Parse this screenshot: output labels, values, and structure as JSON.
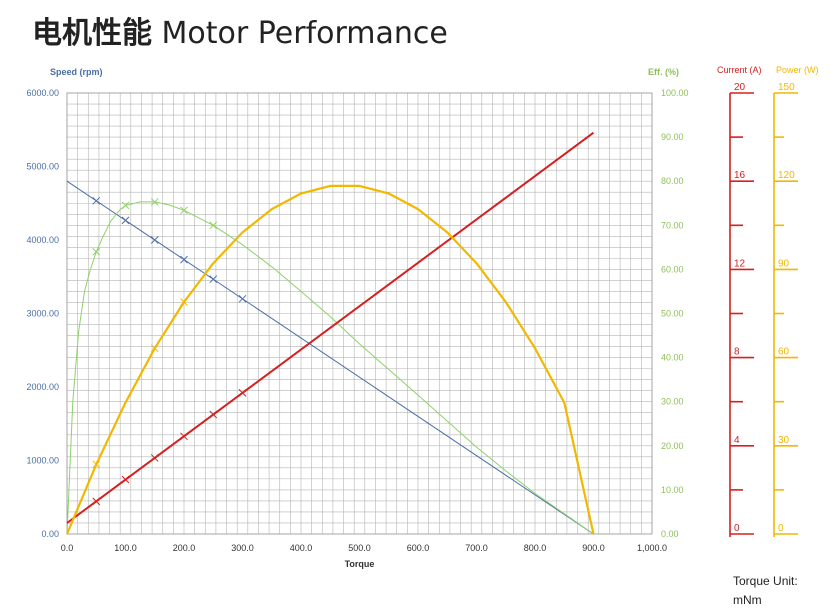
{
  "page": {
    "title_cn": "电机性能",
    "title_en": "Motor Performance",
    "torque_unit_label": "Torque Unit:",
    "torque_unit_value": "mNm"
  },
  "colors": {
    "speed": "#4a6fa5",
    "efficiency": "#8fd16a",
    "current": "#d42020",
    "power": "#f2b800",
    "grid": "#b4b4b4"
  },
  "chart_data": {
    "type": "line",
    "xlabel": "Torque",
    "xlim": [
      0,
      1000
    ],
    "xticks": [
      "0.0",
      "100.0",
      "200.0",
      "300.0",
      "400.0",
      "500.0",
      "600.0",
      "700.0",
      "800.0",
      "900.0",
      "1,000.0"
    ],
    "left_axis": {
      "label": "Speed (rpm)",
      "range": [
        0,
        6000
      ],
      "ticks": [
        "0.00",
        "1000.00",
        "2000.00",
        "3000.00",
        "4000.00",
        "5000.00",
        "6000.00"
      ]
    },
    "right_axis": {
      "label": "Eff. (%)",
      "range": [
        0,
        100
      ],
      "ticks": [
        "0.00",
        "10.00",
        "20.00",
        "30.00",
        "40.00",
        "50.00",
        "60.00",
        "70.00",
        "80.00",
        "90.00",
        "100.00"
      ]
    },
    "current_axis": {
      "label": "Current (A)",
      "range": [
        0,
        20
      ],
      "ticks": [
        "0",
        "4",
        "8",
        "12",
        "16",
        "20"
      ]
    },
    "power_axis": {
      "label": "Power (W)",
      "range": [
        0,
        150
      ],
      "ticks": [
        "0",
        "30",
        "60",
        "90",
        "120",
        "150"
      ]
    },
    "grid": true,
    "series": [
      {
        "key": "speed",
        "axis": "left",
        "x": [
          0,
          900
        ],
        "y": [
          4800,
          0
        ],
        "markers_x": [
          50,
          100,
          150,
          200,
          250,
          300
        ],
        "markers_y": [
          4533,
          4267,
          4000,
          3733,
          3467,
          3200
        ]
      },
      {
        "key": "efficiency",
        "axis": "right",
        "x": [
          0,
          5,
          10,
          20,
          30,
          40,
          50,
          60,
          75,
          90,
          100,
          125,
          150,
          175,
          200,
          250,
          300,
          350,
          400,
          450,
          500,
          550,
          600,
          650,
          700,
          750,
          800,
          850,
          900
        ],
        "y": [
          0,
          15,
          30,
          46,
          55,
          60,
          64,
          67,
          71,
          73.5,
          74.5,
          75.3,
          75.3,
          74.6,
          73.4,
          70,
          65.6,
          60.6,
          55,
          49.3,
          43.1,
          37.3,
          31.5,
          25.6,
          19.7,
          14.3,
          9.2,
          4.6,
          0
        ],
        "markers_x": [
          50,
          100,
          150,
          200,
          250
        ],
        "markers_y": [
          64,
          74.5,
          75.3,
          73.4,
          70
        ]
      },
      {
        "key": "current",
        "axis": "current",
        "x": [
          0,
          900
        ],
        "y": [
          0.5,
          18.2
        ],
        "markers_x": [
          50,
          100,
          150,
          200,
          250,
          300
        ],
        "markers_y": [
          1.48,
          2.47,
          3.45,
          4.43,
          5.42,
          6.4
        ]
      },
      {
        "key": "power",
        "axis": "power",
        "x": [
          0,
          50,
          100,
          150,
          200,
          250,
          300,
          350,
          400,
          450,
          500,
          550,
          600,
          650,
          700,
          750,
          800,
          850,
          900
        ],
        "y": [
          0,
          23.7,
          44.7,
          63.2,
          78.9,
          92.1,
          102.6,
          110.5,
          115.8,
          118.4,
          118.4,
          115.8,
          110.5,
          102.6,
          92.1,
          78.9,
          63.2,
          44.7,
          0
        ],
        "markers_x": [
          50,
          150,
          200
        ],
        "markers_y": [
          23.7,
          63.2,
          78.9
        ]
      }
    ]
  }
}
